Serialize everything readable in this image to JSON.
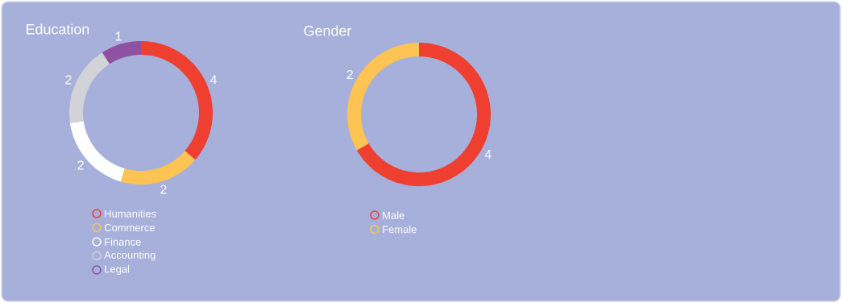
{
  "chart_data": [
    {
      "type": "donut",
      "title": "Education",
      "categories": [
        "Humanities",
        "Commerce",
        "Finance",
        "Accounting",
        "Legal"
      ],
      "values": [
        4,
        2,
        2,
        2,
        1
      ],
      "colors": [
        "#ef3f31",
        "#fdc353",
        "#ffffff",
        "#d2d3d8",
        "#8f52a3"
      ],
      "data_labels": true,
      "legend": "bottom"
    },
    {
      "type": "donut",
      "title": "Gender",
      "categories": [
        "Male",
        "Female"
      ],
      "values": [
        4,
        2
      ],
      "colors": [
        "#ef3f31",
        "#fdc353"
      ],
      "data_labels": true,
      "legend": "bottom"
    }
  ]
}
